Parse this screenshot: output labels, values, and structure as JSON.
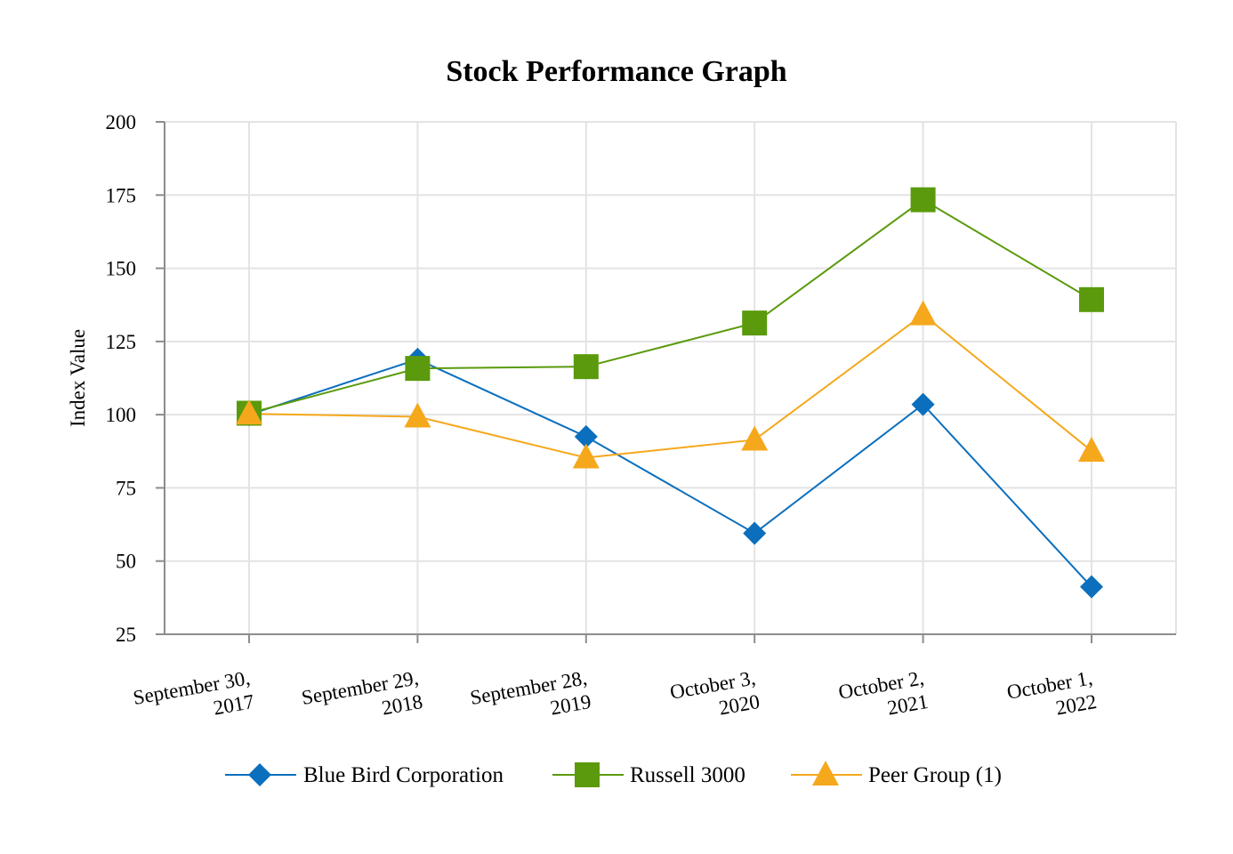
{
  "chart_data": {
    "type": "line",
    "title": "Stock Performance Graph",
    "xlabel": "",
    "ylabel": "Index Value",
    "categories": [
      [
        "September 30,",
        "2017"
      ],
      [
        "September 29,",
        "2018"
      ],
      [
        "September 28,",
        "2019"
      ],
      [
        "October 3,",
        "2020"
      ],
      [
        "October 2,",
        "2021"
      ],
      [
        "October 1,",
        "2022"
      ]
    ],
    "ylim": [
      25,
      200
    ],
    "yticks": [
      25,
      50,
      75,
      100,
      125,
      150,
      175,
      200
    ],
    "grid": true,
    "legend_position": "bottom",
    "series": [
      {
        "name": "Blue Bird Corporation",
        "marker": "diamond",
        "color": "#0b6fbd",
        "values": [
          100,
          118.9,
          92.5,
          59.5,
          103.5,
          41.2
        ]
      },
      {
        "name": "Russell 3000",
        "marker": "square",
        "color": "#5a9a0c",
        "values": [
          100.5,
          115.8,
          116.4,
          131.3,
          173.4,
          139.3
        ]
      },
      {
        "name": "Peer Group (1)",
        "marker": "triangle",
        "color": "#f5a81c",
        "values": [
          100.3,
          99.3,
          85.3,
          91.4,
          134.2,
          87.6
        ]
      }
    ]
  },
  "colors": {
    "grid": "#e3e3e3",
    "axis": "#8c8c8c"
  }
}
